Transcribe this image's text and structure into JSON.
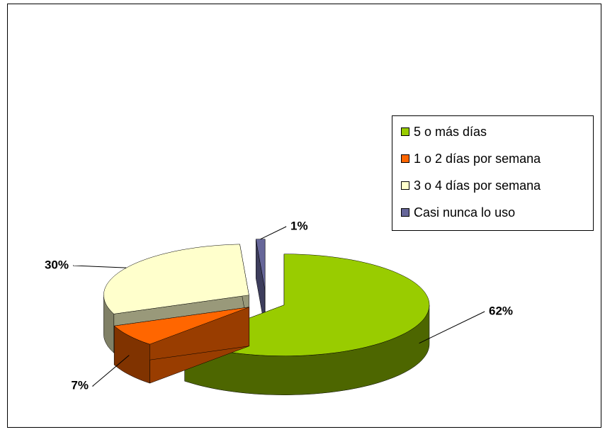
{
  "chart_data": {
    "type": "pie",
    "categories": [
      "5 o más días",
      "1 o 2 días por semana",
      "3 o 4 días por semana",
      "Casi nunca lo uso"
    ],
    "values": [
      62,
      7,
      30,
      1
    ],
    "value_labels": [
      "62%",
      "7%",
      "30%",
      "1%"
    ],
    "colors": [
      "#99cc00",
      "#ff6600",
      "#ffffcc",
      "#666699"
    ],
    "legend": "right"
  }
}
